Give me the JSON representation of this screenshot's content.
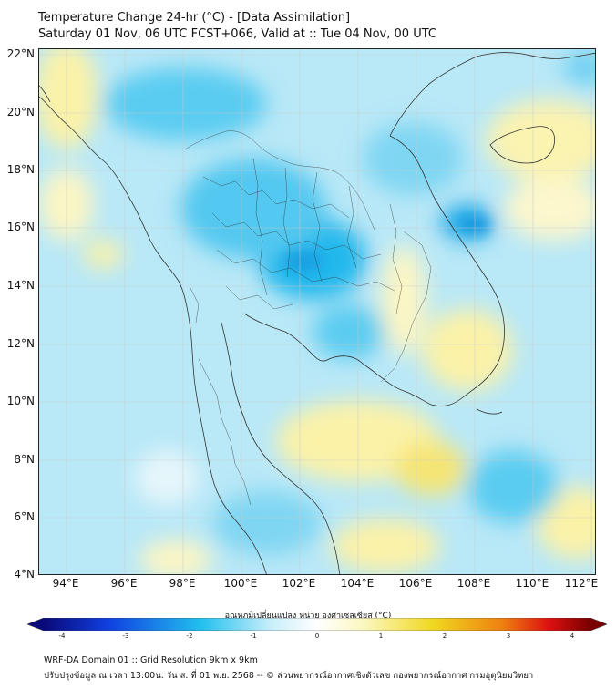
{
  "header": {
    "title_line1": "Temperature Change 24-hr (°C) - [Data Assimilation]",
    "title_line2": "Saturday 01 Nov, 06 UTC FCST+066, Valid at :: Tue 04 Nov, 00 UTC"
  },
  "map": {
    "lat_labels": [
      "22°N",
      "20°N",
      "18°N",
      "16°N",
      "14°N",
      "12°N",
      "10°N",
      "8°N",
      "6°N",
      "4°N"
    ],
    "lon_labels": [
      "94°E",
      "96°E",
      "98°E",
      "100°E",
      "102°E",
      "104°E",
      "106°E",
      "108°E",
      "110°E",
      "112°E"
    ]
  },
  "colorbar": {
    "title": "อุณหภูมิเปลี่ยนแปลง หน่วย องศาเซลเซียส (°C)",
    "ticks": [
      "-4",
      "-3",
      "-2",
      "-1",
      "0",
      "1",
      "2",
      "3",
      "4"
    ],
    "colors": {
      "dark_blue": "#0a0a7a",
      "blue": "#1040e0",
      "cyan": "#22c0ee",
      "light_cyan": "#c8eefa",
      "white": "#ffffff",
      "light_yellow": "#fbf7c0",
      "yellow": "#f0d820",
      "orange": "#ee8010",
      "red": "#dd1010",
      "dark_red": "#7a0000"
    }
  },
  "footer": {
    "line1": "WRF-DA Domain 01 :: Grid Resolution 9km x 9km",
    "line2": "ปรับปรุงข้อมูล ณ เวลา 13:00น. วัน ส. ที่ 01 พ.ย. 2568 -- © ส่วนพยากรณ์อากาศเชิงตัวเลข กองพยากรณ์อากาศ กรมอุตุนิยมวิทยา"
  }
}
